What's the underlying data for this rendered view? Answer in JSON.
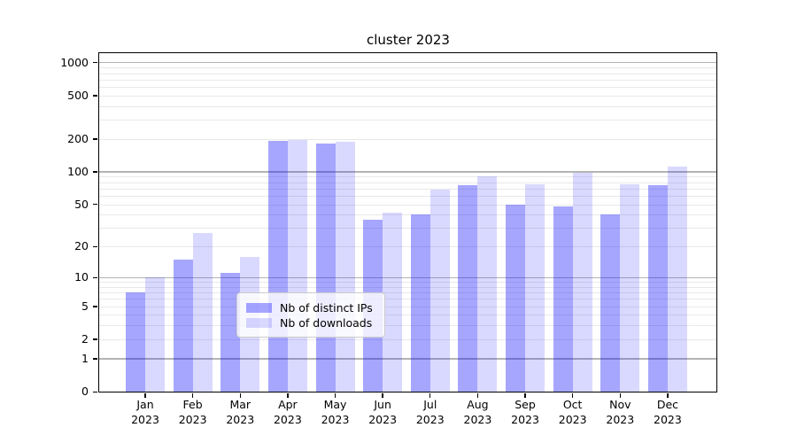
{
  "chart_data": {
    "type": "bar",
    "title": "cluster 2023",
    "categories": [
      "Jan 2023",
      "Feb 2023",
      "Mar 2023",
      "Apr 2023",
      "May 2023",
      "Jun 2023",
      "Jul 2023",
      "Aug 2023",
      "Sep 2023",
      "Oct 2023",
      "Nov 2023",
      "Dec 2023"
    ],
    "series": [
      {
        "name": "Nb of distinct IPs",
        "color_hex": "#a6a6ff",
        "fill": "rgba(0,0,255,0.35)",
        "values": [
          7,
          15,
          11,
          191,
          180,
          36,
          40,
          75,
          50,
          48,
          40,
          75
        ]
      },
      {
        "name": "Nb of downloads",
        "color_hex": "#d9d9ff",
        "fill": "rgba(0,0,255,0.15)",
        "values": [
          10,
          27,
          16,
          197,
          187,
          42,
          69,
          91,
          77,
          97,
          77,
          111
        ]
      }
    ],
    "y_scale": "log1p",
    "y_ticks": [
      0,
      1,
      2,
      5,
      10,
      20,
      50,
      100,
      200,
      500,
      1000
    ],
    "y_tick_labels": [
      "0",
      "1",
      "2",
      "5",
      "10",
      "20",
      "50",
      "100",
      "200",
      "500",
      "1000"
    ],
    "ylim": [
      0,
      1240
    ],
    "xlabel": "",
    "ylabel": "",
    "grid": true,
    "legend_position": "lower center",
    "colors": {
      "major_gridline": "#b4b4b4",
      "minor_gridline": "#e9e9e9",
      "spine": "#000000",
      "background": "#ffffff"
    }
  }
}
